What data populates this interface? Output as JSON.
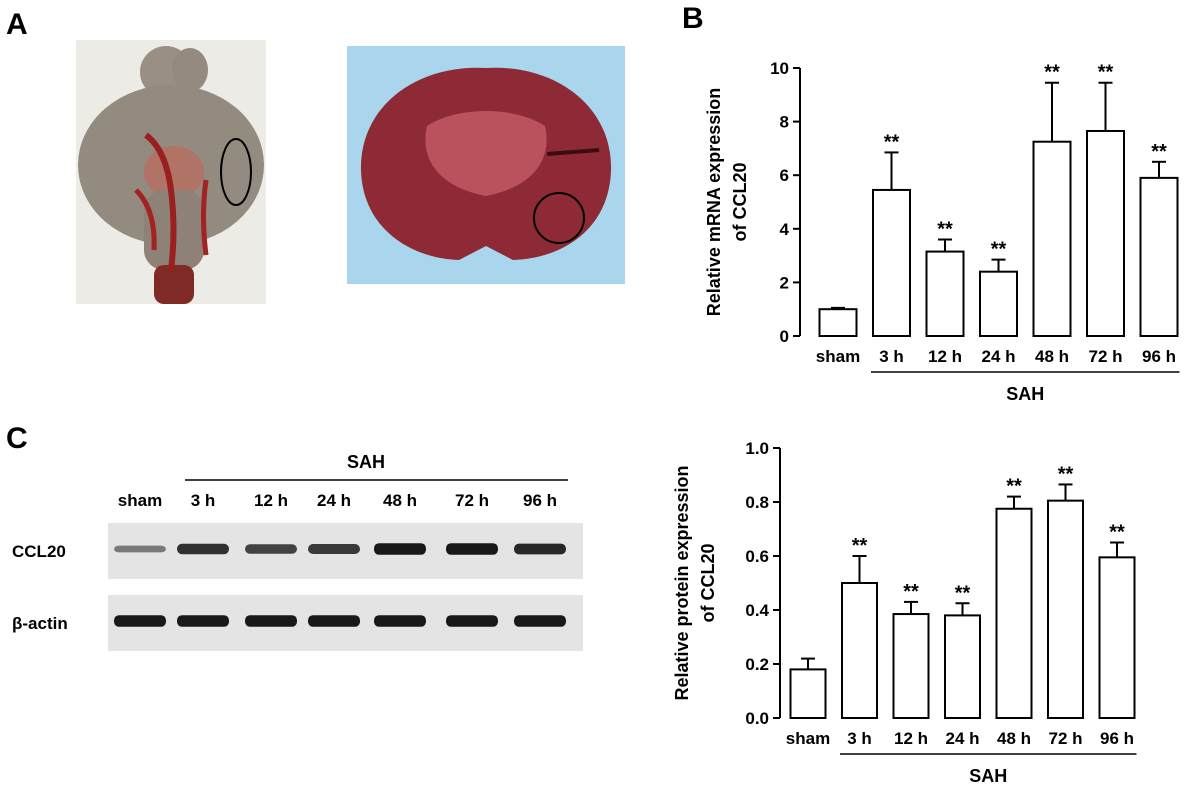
{
  "panels": {
    "a": "A",
    "b": "B",
    "c": "C"
  },
  "colors": {
    "bar_fill": "#ffffff",
    "stroke": "#000000",
    "tissue_dark": "#8e2a35",
    "tissue_light": "#b9525d",
    "brain_gray": "#938a80",
    "drape_blue": "#a9d6ec",
    "blood": "#9a1f1f",
    "band": "#111111",
    "blot_bg": "#e4e4e4"
  },
  "blot": {
    "group_label": "SAH",
    "lanes": [
      "sham",
      "3 h",
      "12 h",
      "24 h",
      "48 h",
      "72 h",
      "96 h"
    ],
    "rows": [
      {
        "label": "CCL20",
        "intensity": [
          0.35,
          0.8,
          0.7,
          0.75,
          0.95,
          0.95,
          0.85
        ]
      },
      {
        "label": "β-actin",
        "intensity": [
          0.95,
          0.95,
          0.95,
          0.95,
          0.95,
          0.95,
          0.95
        ]
      }
    ]
  },
  "chart_data": [
    {
      "type": "bar",
      "categories": [
        "sham",
        "3 h",
        "12 h",
        "24 h",
        "48 h",
        "72 h",
        "96 h"
      ],
      "values": [
        1.0,
        5.45,
        3.15,
        2.4,
        7.25,
        7.65,
        5.9
      ],
      "errors": [
        0.05,
        1.4,
        0.45,
        0.45,
        2.2,
        1.8,
        0.6
      ],
      "significance": [
        "",
        "**",
        "**",
        "**",
        "**",
        "**",
        "**"
      ],
      "ylabel": "Relative mRNA expression of CCL20",
      "ylabel_lines": [
        "Relative mRNA expression",
        "of CCL20"
      ],
      "group_label": "SAH",
      "ylim": [
        0,
        10
      ],
      "yticks": [
        "0",
        "2",
        "4",
        "6",
        "8",
        "10"
      ],
      "ytick_values": [
        0,
        2,
        4,
        6,
        8,
        10
      ]
    },
    {
      "type": "bar",
      "categories": [
        "sham",
        "3 h",
        "12 h",
        "24 h",
        "48 h",
        "72 h",
        "96 h"
      ],
      "values": [
        0.18,
        0.5,
        0.385,
        0.38,
        0.775,
        0.805,
        0.595
      ],
      "errors": [
        0.04,
        0.1,
        0.045,
        0.045,
        0.045,
        0.06,
        0.055
      ],
      "significance": [
        "",
        "**",
        "**",
        "**",
        "**",
        "**",
        "**"
      ],
      "ylabel": "Relative protein expression of CCL20",
      "ylabel_lines": [
        "Relative protein expression",
        "of CCL20"
      ],
      "group_label": "SAH",
      "ylim": [
        0,
        1.0
      ],
      "yticks": [
        "0.0",
        "0.2",
        "0.4",
        "0.6",
        "0.8",
        "1.0"
      ],
      "ytick_values": [
        0,
        0.2,
        0.4,
        0.6,
        0.8,
        1.0
      ]
    }
  ]
}
